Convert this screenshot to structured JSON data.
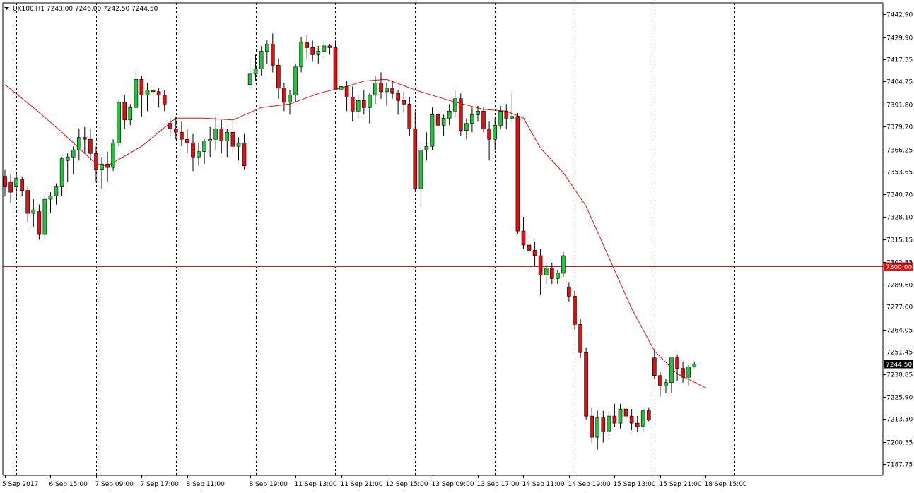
{
  "window": {
    "title": "UK100,H1  7243.00 7246.00 7242.50 7244.50",
    "menu_icon": "triangle-down-icon"
  },
  "colors": {
    "background": "#ffffff",
    "grid": "#000000",
    "bull": "#22c43a",
    "bear": "#dd1111",
    "ma_line": "#e01010",
    "hline": "#e01010",
    "price_tag_bg": "#e01010",
    "price_tag_text": "#ffffff"
  },
  "chart_data": {
    "type": "candlestick",
    "symbol": "UK100",
    "timeframe": "H1",
    "ohlc_header": {
      "open": 7243.0,
      "high": 7246.0,
      "low": 7242.5,
      "close": 7244.5
    },
    "ylim": [
      7181.4,
      7449.4
    ],
    "y_ticks": [
      "7442.90",
      "7429.90",
      "7417.35",
      "7404.75",
      "7391.80",
      "7379.20",
      "7366.25",
      "7353.65",
      "7340.70",
      "7328.10",
      "7315.15",
      "7302.55",
      "7289.60",
      "7277.00",
      "7264.05",
      "7251.45",
      "7238.85",
      "7225.90",
      "7213.30",
      "7200.35",
      "7187.75"
    ],
    "x_labels": [
      "5 Sep 2017",
      "6 Sep 15:00",
      "7 Sep 09:00",
      "7 Sep 17:00",
      "8 Sep 11:00",
      "8 Sep 19:00",
      "11 Sep 13:00",
      "11 Sep 21:00",
      "12 Sep 15:00",
      "13 Sep 09:00",
      "13 Sep 17:00",
      "14 Sep 11:00",
      "14 Sep 19:00",
      "15 Sep 13:00",
      "15 Sep 21:00",
      "18 Sep 15:00"
    ],
    "x_label_bars": [
      0,
      8,
      16,
      24,
      32,
      43,
      51,
      59,
      67,
      75,
      83,
      91,
      99,
      107,
      115,
      123
    ],
    "separator_bars": [
      2,
      16,
      30,
      44,
      58,
      72,
      86,
      100,
      114,
      128
    ],
    "horizontal_line": {
      "value": 7300.0,
      "label": "7300.00"
    },
    "last_price": {
      "value": 7244.5,
      "label": "7244.50"
    },
    "candles": [
      [
        7351,
        7355,
        7340,
        7345
      ],
      [
        7348,
        7352,
        7336,
        7342
      ],
      [
        7345,
        7352,
        7338,
        7350
      ],
      [
        7349,
        7351,
        7340,
        7343
      ],
      [
        7343,
        7345,
        7325,
        7330
      ],
      [
        7330,
        7338,
        7322,
        7332
      ],
      [
        7331,
        7335,
        7315,
        7318
      ],
      [
        7318,
        7340,
        7315,
        7338
      ],
      [
        7338,
        7342,
        7330,
        7340
      ],
      [
        7340,
        7347,
        7335,
        7345
      ],
      [
        7345,
        7362,
        7340,
        7361
      ],
      [
        7360,
        7364,
        7348,
        7362
      ],
      [
        7362,
        7368,
        7352,
        7366
      ],
      [
        7366,
        7378,
        7360,
        7373
      ],
      [
        7373,
        7379,
        7364,
        7372
      ],
      [
        7372,
        7378,
        7360,
        7364
      ],
      [
        7364,
        7368,
        7348,
        7355
      ],
      [
        7355,
        7362,
        7344,
        7358
      ],
      [
        7358,
        7365,
        7348,
        7356
      ],
      [
        7356,
        7372,
        7354,
        7370
      ],
      [
        7370,
        7394,
        7368,
        7393
      ],
      [
        7393,
        7397,
        7378,
        7383
      ],
      [
        7383,
        7392,
        7380,
        7390
      ],
      [
        7390,
        7411,
        7388,
        7406
      ],
      [
        7406,
        7408,
        7385,
        7397
      ],
      [
        7397,
        7404,
        7388,
        7400
      ],
      [
        7400,
        7402,
        7393,
        7399
      ],
      [
        7399,
        7401,
        7390,
        7397
      ],
      [
        7397,
        7400,
        7388,
        7392
      ],
      [
        7381,
        7384,
        7374,
        7378
      ],
      [
        7378,
        7385,
        7372,
        7376
      ],
      [
        7376,
        7382,
        7368,
        7372
      ],
      [
        7372,
        7378,
        7364,
        7370
      ],
      [
        7370,
        7375,
        7354,
        7362
      ],
      [
        7362,
        7370,
        7357,
        7365
      ],
      [
        7365,
        7372,
        7358,
        7371
      ],
      [
        7371,
        7379,
        7362,
        7372
      ],
      [
        7372,
        7385,
        7366,
        7378
      ],
      [
        7378,
        7383,
        7364,
        7371
      ],
      [
        7371,
        7378,
        7362,
        7376
      ],
      [
        7376,
        7381,
        7364,
        7368
      ],
      [
        7368,
        7373,
        7360,
        7370
      ],
      [
        7370,
        7375,
        7355,
        7357
      ],
      [
        7403,
        7418,
        7400,
        7409
      ],
      [
        7409,
        7420,
        7405,
        7412
      ],
      [
        7412,
        7425,
        7408,
        7422
      ],
      [
        7422,
        7428,
        7415,
        7426
      ],
      [
        7426,
        7432,
        7410,
        7414
      ],
      [
        7414,
        7418,
        7395,
        7401
      ],
      [
        7401,
        7404,
        7388,
        7393
      ],
      [
        7393,
        7400,
        7386,
        7397
      ],
      [
        7397,
        7415,
        7393,
        7413
      ],
      [
        7413,
        7430,
        7410,
        7427
      ],
      [
        7427,
        7431,
        7418,
        7424
      ],
      [
        7424,
        7428,
        7416,
        7420
      ],
      [
        7420,
        7425,
        7415,
        7422
      ],
      [
        7422,
        7427,
        7418,
        7425
      ],
      [
        7425,
        7426,
        7420,
        7424
      ],
      [
        7424,
        7428,
        7400,
        7400
      ],
      [
        7400,
        7434,
        7398,
        7402
      ],
      [
        7402,
        7405,
        7388,
        7396
      ],
      [
        7396,
        7402,
        7382,
        7388
      ],
      [
        7388,
        7397,
        7384,
        7394
      ],
      [
        7394,
        7400,
        7386,
        7390
      ],
      [
        7390,
        7398,
        7381,
        7397
      ],
      [
        7397,
        7408,
        7392,
        7404
      ],
      [
        7404,
        7410,
        7395,
        7399
      ],
      [
        7399,
        7404,
        7391,
        7401
      ],
      [
        7401,
        7405,
        7395,
        7398
      ],
      [
        7398,
        7400,
        7386,
        7394
      ],
      [
        7394,
        7399,
        7387,
        7392
      ],
      [
        7392,
        7396,
        7374,
        7378
      ],
      [
        7378,
        7388,
        7342,
        7344
      ],
      [
        7344,
        7370,
        7334,
        7366
      ],
      [
        7366,
        7376,
        7360,
        7368
      ],
      [
        7368,
        7390,
        7366,
        7386
      ],
      [
        7386,
        7389,
        7376,
        7380
      ],
      [
        7380,
        7386,
        7374,
        7384
      ],
      [
        7384,
        7392,
        7380,
        7388
      ],
      [
        7388,
        7400,
        7385,
        7395
      ],
      [
        7395,
        7398,
        7374,
        7377
      ],
      [
        7377,
        7384,
        7372,
        7381
      ],
      [
        7381,
        7390,
        7376,
        7386
      ],
      [
        7386,
        7391,
        7382,
        7388
      ],
      [
        7388,
        7390,
        7376,
        7378
      ],
      [
        7378,
        7382,
        7360,
        7372
      ],
      [
        7372,
        7385,
        7366,
        7380
      ],
      [
        7380,
        7391,
        7378,
        7388
      ],
      [
        7388,
        7392,
        7378,
        7384
      ],
      [
        7384,
        7398,
        7382,
        7385
      ],
      [
        7385,
        7387,
        7318,
        7320
      ],
      [
        7320,
        7328,
        7310,
        7312
      ],
      [
        7312,
        7318,
        7298,
        7309
      ],
      [
        7309,
        7314,
        7300,
        7306
      ],
      [
        7306,
        7310,
        7284,
        7295
      ],
      [
        7295,
        7302,
        7290,
        7299
      ],
      [
        7299,
        7302,
        7290,
        7293
      ],
      [
        7293,
        7298,
        7290,
        7296
      ],
      [
        7296,
        7308,
        7294,
        7306
      ],
      [
        7288,
        7291,
        7280,
        7283
      ],
      [
        7283,
        7286,
        7264,
        7267
      ],
      [
        7267,
        7270,
        7248,
        7251
      ],
      [
        7251,
        7254,
        7213,
        7215
      ],
      [
        7215,
        7220,
        7200,
        7203
      ],
      [
        7203,
        7218,
        7196,
        7214
      ],
      [
        7214,
        7218,
        7200,
        7206
      ],
      [
        7206,
        7218,
        7203,
        7215
      ],
      [
        7215,
        7222,
        7209,
        7211
      ],
      [
        7211,
        7222,
        7208,
        7219
      ],
      [
        7219,
        7223,
        7212,
        7215
      ],
      [
        7215,
        7219,
        7207,
        7211
      ],
      [
        7211,
        7215,
        7206,
        7209
      ],
      [
        7209,
        7220,
        7206,
        7218
      ],
      [
        7218,
        7220,
        7212,
        7213
      ],
      [
        7248,
        7253,
        7236,
        7238
      ],
      [
        7238,
        7240,
        7226,
        7232
      ],
      [
        7232,
        7236,
        7228,
        7234
      ],
      [
        7234,
        7248,
        7228,
        7248
      ],
      [
        7248,
        7250,
        7235,
        7242
      ],
      [
        7242,
        7246,
        7234,
        7237
      ],
      [
        7237,
        7244,
        7232,
        7243
      ],
      [
        7243,
        7246,
        7242.5,
        7244.5
      ]
    ],
    "ma_points": [
      [
        0,
        7403
      ],
      [
        5,
        7390
      ],
      [
        10,
        7376
      ],
      [
        16,
        7358
      ],
      [
        18,
        7357
      ],
      [
        24,
        7368
      ],
      [
        30,
        7384
      ],
      [
        35,
        7384
      ],
      [
        40,
        7383
      ],
      [
        45,
        7390
      ],
      [
        50,
        7392
      ],
      [
        55,
        7398
      ],
      [
        60,
        7402
      ],
      [
        63,
        7405
      ],
      [
        67,
        7406
      ],
      [
        72,
        7400
      ],
      [
        78,
        7394
      ],
      [
        84,
        7389
      ],
      [
        88,
        7388
      ],
      [
        91,
        7384
      ],
      [
        94,
        7367
      ],
      [
        98,
        7353
      ],
      [
        102,
        7334
      ],
      [
        106,
        7305
      ],
      [
        110,
        7276
      ],
      [
        114,
        7252
      ],
      [
        118,
        7239
      ],
      [
        123,
        7231
      ]
    ]
  }
}
